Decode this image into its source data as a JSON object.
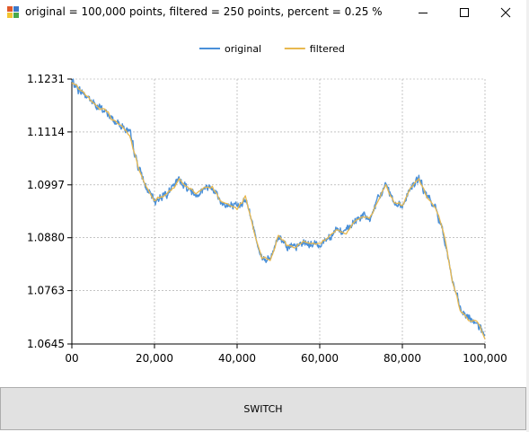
{
  "window": {
    "title": "original = 100,000 points, filtered = 250 points, percent = 0.25 %",
    "controls": [
      "minimize",
      "maximize",
      "close"
    ]
  },
  "legend": {
    "placement": "top-center",
    "items": [
      {
        "label": "original",
        "color": "#4a90d9"
      },
      {
        "label": "filtered",
        "color": "#e8b84f"
      }
    ]
  },
  "chart_data": {
    "type": "line",
    "grid": true,
    "xlim": [
      0,
      100000
    ],
    "ylim": [
      1.0645,
      1.1231
    ],
    "x_ticks": [
      0,
      20000,
      40000,
      60000,
      80000,
      100000
    ],
    "x_tick_labels": [
      "00",
      "20,000",
      "40,000",
      "60,000",
      "80,000",
      "100,000"
    ],
    "y_ticks": [
      1.0645,
      1.0763,
      1.088,
      1.0997,
      1.1114,
      1.1231
    ],
    "y_tick_labels": [
      "1.0645",
      "1.0763",
      "1.0880",
      "1.0997",
      "1.1114",
      "1.1231"
    ],
    "series": [
      {
        "name": "original",
        "color": "#4a90d9",
        "noise": 0.0012,
        "x": [
          0,
          2000,
          4000,
          6000,
          8000,
          10000,
          12000,
          14000,
          16000,
          18000,
          20000,
          22000,
          24000,
          26000,
          28000,
          30000,
          32000,
          34000,
          36000,
          38000,
          40000,
          42000,
          44000,
          46000,
          48000,
          50000,
          52000,
          54000,
          56000,
          58000,
          60000,
          62000,
          64000,
          66000,
          68000,
          70000,
          72000,
          74000,
          76000,
          78000,
          80000,
          82000,
          84000,
          86000,
          88000,
          90000,
          92000,
          94000,
          96000,
          98000,
          100000
        ],
        "values": [
          1.1225,
          1.1205,
          1.119,
          1.117,
          1.116,
          1.114,
          1.113,
          1.111,
          1.104,
          1.099,
          1.096,
          1.0975,
          1.0985,
          1.101,
          1.099,
          1.0975,
          1.099,
          1.0995,
          1.096,
          1.095,
          1.0945,
          1.097,
          1.09,
          1.0835,
          1.083,
          1.0885,
          1.0865,
          1.0855,
          1.087,
          1.0865,
          1.0865,
          1.088,
          1.09,
          1.089,
          1.091,
          1.093,
          1.092,
          1.096,
          1.1,
          1.096,
          1.095,
          1.099,
          1.101,
          1.097,
          1.0945,
          1.089,
          1.079,
          1.072,
          1.07,
          1.0695,
          1.066
        ]
      },
      {
        "name": "filtered",
        "color": "#e8b84f",
        "noise": 0.0006,
        "x": [
          0,
          2000,
          4000,
          6000,
          8000,
          10000,
          12000,
          14000,
          16000,
          18000,
          20000,
          22000,
          24000,
          26000,
          28000,
          30000,
          32000,
          34000,
          36000,
          38000,
          40000,
          42000,
          44000,
          46000,
          48000,
          50000,
          52000,
          54000,
          56000,
          58000,
          60000,
          62000,
          64000,
          66000,
          68000,
          70000,
          72000,
          74000,
          76000,
          78000,
          80000,
          82000,
          84000,
          86000,
          88000,
          90000,
          92000,
          94000,
          96000,
          98000,
          100000
        ],
        "values": [
          1.1225,
          1.1205,
          1.119,
          1.117,
          1.116,
          1.114,
          1.113,
          1.111,
          1.104,
          1.099,
          1.096,
          1.0975,
          1.0985,
          1.101,
          1.099,
          1.0975,
          1.099,
          1.0995,
          1.096,
          1.095,
          1.0945,
          1.097,
          1.09,
          1.0835,
          1.083,
          1.0885,
          1.0865,
          1.0855,
          1.087,
          1.0865,
          1.0865,
          1.088,
          1.09,
          1.089,
          1.091,
          1.093,
          1.092,
          1.096,
          1.1,
          1.096,
          1.095,
          1.099,
          1.101,
          1.097,
          1.0945,
          1.089,
          1.079,
          1.072,
          1.07,
          1.0695,
          1.066
        ]
      }
    ]
  },
  "switch_button": {
    "label": "SWITCH"
  }
}
